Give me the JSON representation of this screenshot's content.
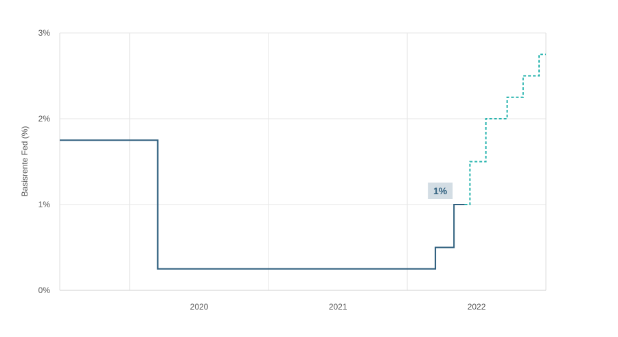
{
  "chart_data": {
    "type": "line",
    "title": "",
    "xlabel": "",
    "ylabel": "Basisrente Fed (%)",
    "x_ticks": [
      "2020",
      "2021",
      "2022"
    ],
    "y_ticks": [
      "0%",
      "1%",
      "2%",
      "3%"
    ],
    "ylim": [
      0,
      3
    ],
    "grid": true,
    "step": true,
    "series": [
      {
        "style": "solid",
        "color": "#2f5f7e",
        "x": [
          "2019-07-01",
          "2019-08-01",
          "2020-03-15",
          "2022-03-16",
          "2022-05-04",
          "2022-06-01"
        ],
        "y": [
          1.75,
          1.75,
          0.25,
          0.5,
          1.0,
          1.0
        ]
      },
      {
        "style": "dashed",
        "color": "#25b3ad",
        "x": [
          "2022-06-01",
          "2022-06-15",
          "2022-07-27",
          "2022-09-21",
          "2022-11-02",
          "2022-12-14",
          "2023-01-01"
        ],
        "y": [
          1.0,
          1.5,
          2.0,
          2.25,
          2.5,
          2.75,
          2.75
        ]
      }
    ],
    "annotations": [
      {
        "text": "1%",
        "x": "2022-05-04",
        "y": 1.0,
        "bg": "#d3dde4",
        "color": "#2f5f7e"
      }
    ]
  }
}
